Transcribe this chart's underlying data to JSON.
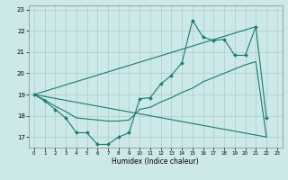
{
  "xlabel": "Humidex (Indice chaleur)",
  "bg_color": "#cce8e8",
  "grid_color": "#aacccc",
  "line_color": "#1a7a6e",
  "xlim": [
    -0.5,
    23.5
  ],
  "ylim": [
    16.5,
    23.2
  ],
  "yticks": [
    17,
    18,
    19,
    20,
    21,
    22,
    23
  ],
  "xticks": [
    0,
    1,
    2,
    3,
    4,
    5,
    6,
    7,
    8,
    9,
    10,
    11,
    12,
    13,
    14,
    15,
    16,
    17,
    18,
    19,
    20,
    21,
    22,
    23
  ],
  "line1_x": [
    0,
    1,
    2,
    3,
    4,
    5,
    6,
    7,
    8,
    9,
    10,
    11,
    12,
    13,
    14,
    15,
    16,
    17,
    18,
    19,
    20,
    21,
    22
  ],
  "line1_y": [
    19.0,
    18.7,
    18.3,
    17.9,
    17.2,
    17.2,
    16.65,
    16.65,
    17.0,
    17.2,
    18.8,
    18.85,
    19.5,
    19.9,
    20.5,
    22.5,
    21.7,
    21.55,
    21.6,
    20.85,
    20.85,
    22.2,
    17.9
  ],
  "line2_x": [
    0,
    21
  ],
  "line2_y": [
    19.0,
    22.2
  ],
  "line3_x": [
    0,
    1,
    2,
    3,
    4,
    5,
    6,
    7,
    8,
    9,
    10,
    11,
    12,
    13,
    14,
    15,
    16,
    17,
    18,
    19,
    20,
    21,
    22
  ],
  "line3_y": [
    19.0,
    18.75,
    18.45,
    18.2,
    17.9,
    17.85,
    17.8,
    17.75,
    17.75,
    17.8,
    18.3,
    18.4,
    18.65,
    18.85,
    19.1,
    19.3,
    19.6,
    19.8,
    20.0,
    20.2,
    20.4,
    20.55,
    17.0
  ],
  "line4_x": [
    0,
    22
  ],
  "line4_y": [
    19.0,
    17.0
  ]
}
